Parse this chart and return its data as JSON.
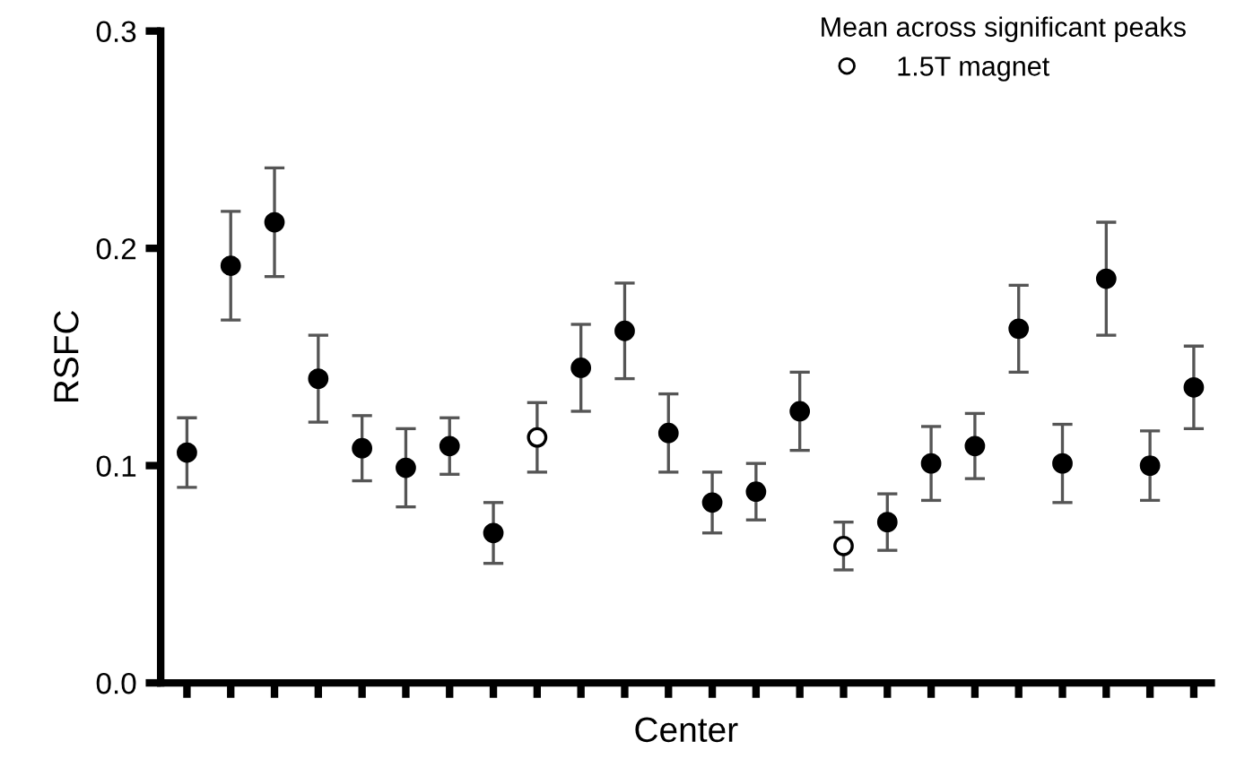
{
  "chart_data": {
    "type": "scatter",
    "xlabel": "Center",
    "ylabel": "RSFC",
    "legend_title": "Mean across significant peaks",
    "legend": "top right",
    "marker": "circle",
    "grid": false,
    "categories": [
      null,
      null,
      null,
      null,
      null,
      null,
      null,
      null,
      null,
      null,
      null,
      null,
      null,
      null,
      null,
      null,
      null,
      null,
      null,
      null,
      null,
      null,
      null,
      null
    ],
    "ylim": [
      0,
      0.3
    ],
    "yticks": [
      {
        "value": 0,
        "label": "0.0"
      },
      0.1,
      0.2,
      0.3
    ],
    "series": [
      {
        "color": "#000000",
        "values": [
          0.106,
          0.192,
          0.212,
          0.14,
          0.108,
          0.099,
          0.109,
          0.069,
          null,
          0.145,
          0.162,
          0.115,
          0.083,
          0.088,
          0.125,
          null,
          0.074,
          0.101,
          0.109,
          0.163,
          0.101,
          0.186,
          0.1,
          0.136
        ],
        "errors": [
          0.016,
          0.025,
          0.025,
          0.02,
          0.015,
          0.018,
          0.013,
          0.014,
          null,
          0.02,
          0.022,
          0.018,
          0.014,
          0.013,
          0.018,
          null,
          0.013,
          0.017,
          0.015,
          0.02,
          0.018,
          0.026,
          0.016,
          0.019
        ]
      },
      {
        "name": "1.5T magnet",
        "color": "#ffffff",
        "values": [
          null,
          null,
          null,
          null,
          null,
          null,
          null,
          null,
          0.113,
          null,
          null,
          null,
          null,
          null,
          null,
          0.063,
          null,
          null,
          null,
          null,
          null,
          null,
          null,
          null
        ],
        "errors": [
          null,
          null,
          null,
          null,
          null,
          null,
          null,
          null,
          0.016,
          null,
          null,
          null,
          null,
          null,
          null,
          0.011,
          null,
          null,
          null,
          null,
          null,
          null,
          null,
          null
        ]
      }
    ]
  }
}
